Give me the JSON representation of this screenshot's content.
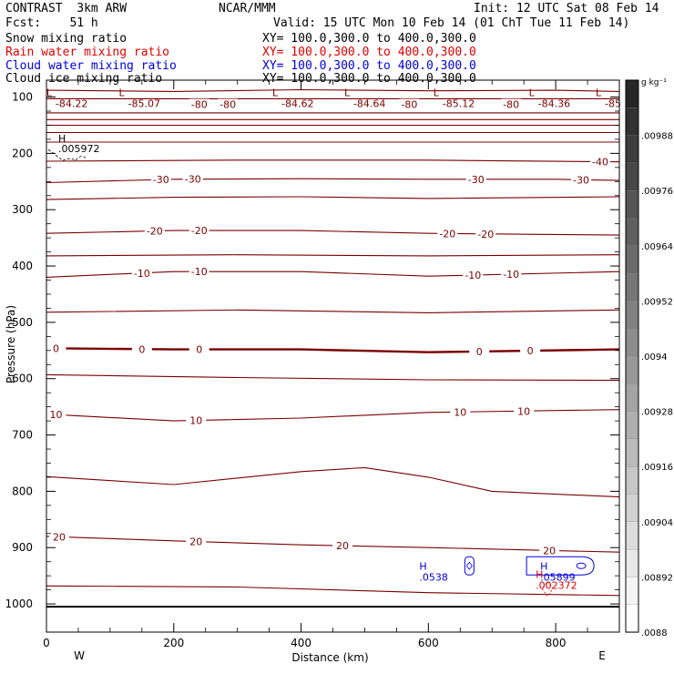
{
  "header": {
    "model": "CONTRAST  3km ARW",
    "center": "NCAR/MMM",
    "init": "Init: 12 UTC Sat 08 Feb 14",
    "fcst": "Fcst:    51 h",
    "valid": "Valid: 15 UTC Mon 10 Feb 14 (01 ChT Tue 11 Feb 14)"
  },
  "fields": [
    {
      "name": "Snow mixing ratio",
      "xy": "XY= 100.0,300.0 to 400.0,300.0",
      "color": "#000000"
    },
    {
      "name": "Rain water mixing ratio",
      "xy": "XY= 100.0,300.0 to 400.0,300.0",
      "color": "#e00000"
    },
    {
      "name": "Cloud water mixing ratio",
      "xy": "XY= 100.0,300.0 to 400.0,300.0",
      "color": "#0000e0"
    },
    {
      "name": "Cloud ice mixing ratio",
      "xy": "XY= 100.0,300.0 to 400.0,300.0",
      "color": "#000000"
    }
  ],
  "chart_data": {
    "type": "cross-section contour",
    "xlabel": "Distance (km)",
    "ylabel": "Pressure (hPa)",
    "xlim": [
      0,
      900
    ],
    "ylim": [
      1050,
      70
    ],
    "xticks": [
      0,
      200,
      400,
      600,
      800
    ],
    "xtick_labels": [
      "0",
      "200",
      "400",
      "600",
      "800"
    ],
    "yticks": [
      100,
      200,
      300,
      400,
      500,
      600,
      700,
      800,
      900,
      1000
    ],
    "ytick_labels": [
      "100",
      "200",
      "300",
      "400",
      "500",
      "600",
      "700",
      "800",
      "900",
      "1000"
    ],
    "end_labels": {
      "left": "W",
      "right": "E"
    },
    "temperature_contours": [
      {
        "points": [
          [
            0,
            88
          ],
          [
            200,
            90
          ],
          [
            400,
            87
          ],
          [
            600,
            89
          ],
          [
            800,
            88
          ],
          [
            900,
            90
          ]
        ]
      },
      {
        "points": [
          [
            0,
            103
          ],
          [
            300,
            103
          ],
          [
            600,
            103
          ],
          [
            900,
            103
          ]
        ]
      },
      {
        "points": [
          [
            0,
            128
          ],
          [
            900,
            128
          ]
        ]
      },
      {
        "points": [
          [
            0,
            140
          ],
          [
            900,
            140
          ]
        ]
      },
      {
        "points": [
          [
            0,
            150
          ],
          [
            900,
            150
          ]
        ]
      },
      {
        "points": [
          [
            0,
            163
          ],
          [
            900,
            163
          ]
        ]
      },
      {
        "points": [
          [
            0,
            180
          ],
          [
            900,
            180
          ]
        ]
      },
      {
        "points": [
          [
            0,
            214
          ],
          [
            300,
            212
          ],
          [
            600,
            212
          ],
          [
            900,
            215
          ]
        ],
        "labels": [
          {
            "x": 870,
            "text": "-40"
          }
        ]
      },
      {
        "points": [
          [
            0,
            252
          ],
          [
            200,
            246
          ],
          [
            400,
            245
          ],
          [
            600,
            246
          ],
          [
            800,
            246
          ],
          [
            900,
            248
          ]
        ],
        "labels": [
          {
            "x": 180,
            "text": "-30"
          },
          {
            "x": 230,
            "text": "-30"
          },
          {
            "x": 675,
            "text": "-30"
          },
          {
            "x": 840,
            "text": "-30"
          }
        ]
      },
      {
        "points": [
          [
            0,
            282
          ],
          [
            200,
            278
          ],
          [
            400,
            277
          ],
          [
            600,
            280
          ],
          [
            900,
            277
          ]
        ]
      },
      {
        "points": [
          [
            0,
            342
          ],
          [
            200,
            337
          ],
          [
            400,
            337
          ],
          [
            600,
            342
          ],
          [
            900,
            345
          ]
        ],
        "labels": [
          {
            "x": 170,
            "text": "-20"
          },
          {
            "x": 240,
            "text": "-20"
          },
          {
            "x": 630,
            "text": "-20"
          },
          {
            "x": 690,
            "text": "-20"
          }
        ]
      },
      {
        "points": [
          [
            0,
            382
          ],
          [
            300,
            380
          ],
          [
            600,
            382
          ],
          [
            900,
            380
          ]
        ]
      },
      {
        "points": [
          [
            0,
            420
          ],
          [
            200,
            410
          ],
          [
            400,
            410
          ],
          [
            600,
            418
          ],
          [
            900,
            410
          ]
        ],
        "labels": [
          {
            "x": 150,
            "text": "-10"
          },
          {
            "x": 240,
            "text": "-10"
          },
          {
            "x": 670,
            "text": "-10"
          },
          {
            "x": 730,
            "text": "-10"
          }
        ]
      },
      {
        "points": [
          [
            0,
            482
          ],
          [
            300,
            478
          ],
          [
            600,
            483
          ],
          [
            900,
            478
          ]
        ]
      },
      {
        "points": [
          [
            0,
            546
          ],
          [
            200,
            548
          ],
          [
            400,
            548
          ],
          [
            600,
            553
          ],
          [
            900,
            548
          ]
        ],
        "width": 2.4,
        "labels": [
          {
            "x": 15,
            "text": "0"
          },
          {
            "x": 150,
            "text": "0"
          },
          {
            "x": 240,
            "text": "0"
          },
          {
            "x": 680,
            "text": "0"
          },
          {
            "x": 760,
            "text": "0"
          }
        ]
      },
      {
        "points": [
          [
            0,
            593
          ],
          [
            300,
            598
          ],
          [
            600,
            602
          ],
          [
            900,
            603
          ]
        ]
      },
      {
        "points": [
          [
            0,
            663
          ],
          [
            200,
            675
          ],
          [
            400,
            670
          ],
          [
            600,
            660
          ],
          [
            900,
            655
          ]
        ],
        "labels": [
          {
            "x": 15,
            "text": "10"
          },
          {
            "x": 235,
            "text": "10"
          },
          {
            "x": 650,
            "text": "10"
          },
          {
            "x": 750,
            "text": "10"
          }
        ]
      },
      {
        "points": [
          [
            0,
            774
          ],
          [
            200,
            788
          ],
          [
            400,
            765
          ],
          [
            500,
            758
          ],
          [
            600,
            775
          ],
          [
            700,
            800
          ],
          [
            900,
            810
          ]
        ]
      },
      {
        "points": [
          [
            0,
            880
          ],
          [
            200,
            888
          ],
          [
            400,
            895
          ],
          [
            600,
            900
          ],
          [
            900,
            908
          ]
        ],
        "labels": [
          {
            "x": 20,
            "text": "20"
          },
          {
            "x": 235,
            "text": "20"
          },
          {
            "x": 465,
            "text": "20"
          },
          {
            "x": 790,
            "text": "20"
          }
        ]
      },
      {
        "points": [
          [
            0,
            968
          ],
          [
            300,
            970
          ],
          [
            600,
            980
          ],
          [
            900,
            985
          ]
        ]
      }
    ],
    "surface_line_hpa": 1005,
    "extrema": [
      {
        "x": 17,
        "p": 92,
        "text": "L",
        "value": "-84.22"
      },
      {
        "x": 131,
        "p": 92,
        "text": "L",
        "value": "-85.07"
      },
      {
        "x": 372,
        "p": 92,
        "text": "L",
        "value": "-84.62"
      },
      {
        "x": 485,
        "p": 92,
        "text": "L",
        "value": "-84.64"
      },
      {
        "x": 625,
        "p": 92,
        "text": "L",
        "value": "-85.12"
      },
      {
        "x": 775,
        "p": 92,
        "text": "L",
        "value": "-84.36"
      },
      {
        "x": 880,
        "p": 92,
        "text": "L",
        "value": "-85"
      }
    ],
    "minus80_labels": [
      {
        "x": 240,
        "p": 113
      },
      {
        "x": 285,
        "p": 113
      },
      {
        "x": 570,
        "p": 113
      },
      {
        "x": 730,
        "p": 113
      }
    ],
    "snow_high": {
      "x": 30,
      "p": 190,
      "text": "H",
      "value": ".005972"
    },
    "cloud_water": {
      "color": "#0000e0",
      "highs": [
        {
          "x": 600,
          "p": 955,
          "text": "H",
          "value": ".0538"
        },
        {
          "x": 790,
          "p": 955,
          "text": "H",
          "value": ".05899"
        }
      ]
    },
    "rain_water": {
      "color": "#e00000",
      "high": {
        "x": 790,
        "p": 970,
        "text": "H",
        "value": ".002372"
      }
    },
    "colorbar": {
      "unit": "g kg⁻¹",
      "labels": [
        ".00988",
        ".00976",
        ".00964",
        ".00952",
        ".0094",
        ".00928",
        ".00916",
        ".00904",
        ".00892",
        ".0088"
      ]
    }
  }
}
